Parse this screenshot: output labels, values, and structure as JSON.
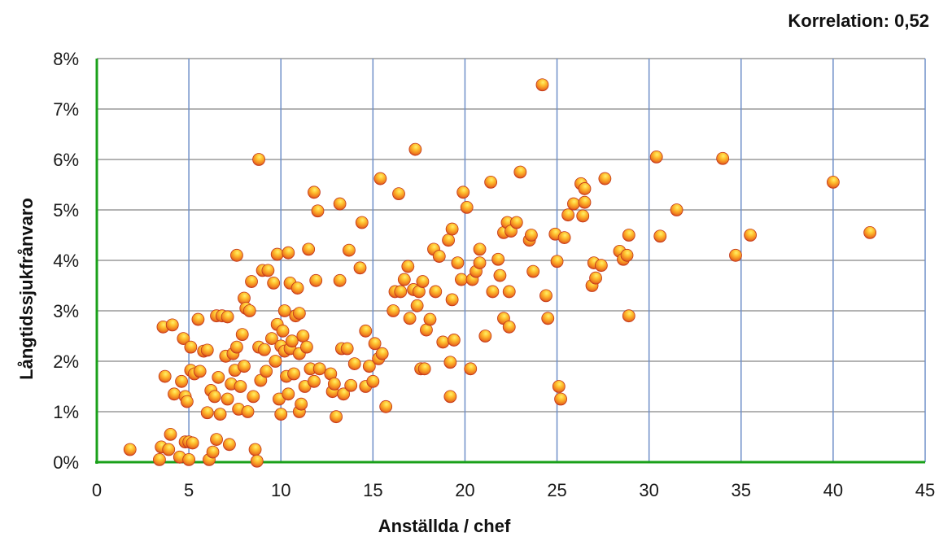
{
  "chart_data": {
    "type": "scatter",
    "annotation": "Korrelation: 0,52",
    "xlabel": "Anställda / chef",
    "ylabel": "Långtidssjukfrånvaro",
    "xlim": [
      0,
      45
    ],
    "ylim": [
      0,
      8
    ],
    "x_ticks": [
      "0",
      "5",
      "10",
      "15",
      "20",
      "25",
      "30",
      "35",
      "40",
      "45"
    ],
    "y_ticks": [
      "0%",
      "1%",
      "2%",
      "3%",
      "4%",
      "5%",
      "6%",
      "7%",
      "8%"
    ],
    "grid": true,
    "legend": "none",
    "colors": {
      "point": "#e8851e",
      "point_highlight": "#ffd23a",
      "point_edge": "#c2361a",
      "axis": "#1aa01a",
      "grid_vertical": "#6f8fc8",
      "grid_horizontal": "#9a9a9a"
    },
    "points": [
      [
        1.8,
        0.25
      ],
      [
        3.4,
        0.05
      ],
      [
        3.5,
        0.3
      ],
      [
        3.6,
        2.68
      ],
      [
        3.7,
        1.7
      ],
      [
        3.9,
        0.25
      ],
      [
        4.0,
        0.55
      ],
      [
        4.1,
        2.72
      ],
      [
        4.2,
        1.35
      ],
      [
        4.5,
        0.1
      ],
      [
        4.6,
        1.6
      ],
      [
        4.7,
        2.45
      ],
      [
        4.8,
        1.3
      ],
      [
        4.8,
        0.4
      ],
      [
        4.9,
        1.2
      ],
      [
        5.0,
        0.4
      ],
      [
        5.0,
        0.05
      ],
      [
        5.1,
        2.28
      ],
      [
        5.1,
        1.82
      ],
      [
        5.2,
        0.38
      ],
      [
        5.3,
        1.75
      ],
      [
        5.5,
        2.83
      ],
      [
        5.6,
        1.8
      ],
      [
        5.8,
        2.2
      ],
      [
        6.0,
        2.22
      ],
      [
        6.0,
        0.98
      ],
      [
        6.1,
        0.05
      ],
      [
        6.2,
        1.42
      ],
      [
        6.3,
        0.2
      ],
      [
        6.4,
        1.3
      ],
      [
        6.5,
        0.45
      ],
      [
        6.5,
        2.9
      ],
      [
        6.6,
        1.68
      ],
      [
        6.7,
        0.95
      ],
      [
        6.8,
        2.9
      ],
      [
        7.0,
        2.1
      ],
      [
        7.1,
        2.88
      ],
      [
        7.1,
        1.25
      ],
      [
        7.2,
        0.35
      ],
      [
        7.3,
        1.55
      ],
      [
        7.4,
        2.15
      ],
      [
        7.5,
        1.82
      ],
      [
        7.6,
        4.1
      ],
      [
        7.6,
        2.28
      ],
      [
        7.7,
        1.05
      ],
      [
        7.8,
        1.5
      ],
      [
        7.9,
        2.53
      ],
      [
        8.0,
        3.25
      ],
      [
        8.0,
        1.9
      ],
      [
        8.1,
        3.05
      ],
      [
        8.2,
        1.0
      ],
      [
        8.3,
        3.0
      ],
      [
        8.4,
        3.58
      ],
      [
        8.5,
        1.3
      ],
      [
        8.6,
        0.25
      ],
      [
        8.7,
        0.02
      ],
      [
        8.8,
        2.28
      ],
      [
        8.8,
        6.0
      ],
      [
        8.9,
        1.62
      ],
      [
        9.0,
        3.8
      ],
      [
        9.1,
        2.23
      ],
      [
        9.2,
        1.8
      ],
      [
        9.3,
        3.8
      ],
      [
        9.5,
        2.45
      ],
      [
        9.6,
        3.55
      ],
      [
        9.7,
        2.0
      ],
      [
        9.8,
        4.12
      ],
      [
        9.8,
        2.73
      ],
      [
        9.9,
        1.25
      ],
      [
        10.0,
        2.3
      ],
      [
        10.0,
        0.95
      ],
      [
        10.1,
        2.6
      ],
      [
        10.2,
        2.2
      ],
      [
        10.2,
        3.0
      ],
      [
        10.3,
        1.7
      ],
      [
        10.4,
        1.35
      ],
      [
        10.4,
        4.15
      ],
      [
        10.5,
        2.25
      ],
      [
        10.5,
        3.55
      ],
      [
        10.6,
        2.4
      ],
      [
        10.7,
        1.75
      ],
      [
        10.8,
        2.9
      ],
      [
        10.9,
        3.45
      ],
      [
        11.0,
        2.15
      ],
      [
        11.0,
        1.0
      ],
      [
        11.0,
        2.95
      ],
      [
        11.1,
        1.15
      ],
      [
        11.2,
        2.5
      ],
      [
        11.3,
        1.5
      ],
      [
        11.4,
        2.28
      ],
      [
        11.5,
        4.22
      ],
      [
        11.6,
        1.85
      ],
      [
        11.8,
        5.35
      ],
      [
        11.8,
        1.6
      ],
      [
        11.9,
        3.6
      ],
      [
        12.0,
        4.98
      ],
      [
        12.1,
        1.85
      ],
      [
        12.7,
        1.75
      ],
      [
        12.8,
        1.4
      ],
      [
        12.9,
        1.55
      ],
      [
        13.0,
        0.9
      ],
      [
        13.2,
        3.6
      ],
      [
        13.2,
        5.12
      ],
      [
        13.3,
        2.25
      ],
      [
        13.4,
        1.35
      ],
      [
        13.6,
        2.25
      ],
      [
        13.7,
        4.2
      ],
      [
        13.8,
        1.52
      ],
      [
        14.0,
        1.95
      ],
      [
        14.3,
        3.85
      ],
      [
        14.4,
        4.75
      ],
      [
        14.6,
        2.6
      ],
      [
        14.6,
        1.5
      ],
      [
        14.8,
        1.9
      ],
      [
        15.0,
        1.6
      ],
      [
        15.1,
        2.35
      ],
      [
        15.3,
        2.05
      ],
      [
        15.4,
        5.62
      ],
      [
        15.5,
        2.15
      ],
      [
        15.7,
        1.1
      ],
      [
        16.1,
        3.0
      ],
      [
        16.2,
        3.38
      ],
      [
        16.4,
        5.32
      ],
      [
        16.5,
        3.38
      ],
      [
        16.7,
        3.62
      ],
      [
        16.9,
        3.88
      ],
      [
        17.0,
        2.85
      ],
      [
        17.2,
        3.42
      ],
      [
        17.3,
        6.2
      ],
      [
        17.4,
        3.1
      ],
      [
        17.5,
        3.38
      ],
      [
        17.6,
        1.85
      ],
      [
        17.7,
        3.58
      ],
      [
        17.8,
        1.85
      ],
      [
        17.9,
        2.62
      ],
      [
        18.1,
        2.83
      ],
      [
        18.3,
        4.22
      ],
      [
        18.4,
        3.38
      ],
      [
        18.6,
        4.08
      ],
      [
        18.8,
        2.38
      ],
      [
        19.1,
        4.4
      ],
      [
        19.2,
        1.3
      ],
      [
        19.2,
        1.98
      ],
      [
        19.3,
        3.22
      ],
      [
        19.3,
        4.62
      ],
      [
        19.4,
        2.42
      ],
      [
        19.6,
        3.95
      ],
      [
        19.8,
        3.62
      ],
      [
        19.9,
        5.35
      ],
      [
        20.1,
        5.05
      ],
      [
        20.3,
        1.85
      ],
      [
        20.4,
        3.62
      ],
      [
        20.6,
        3.78
      ],
      [
        20.8,
        4.22
      ],
      [
        20.8,
        3.95
      ],
      [
        21.1,
        2.5
      ],
      [
        21.4,
        5.55
      ],
      [
        21.5,
        3.38
      ],
      [
        21.8,
        4.02
      ],
      [
        21.9,
        3.7
      ],
      [
        22.1,
        4.55
      ],
      [
        22.1,
        2.85
      ],
      [
        22.3,
        4.75
      ],
      [
        22.4,
        3.38
      ],
      [
        22.4,
        2.68
      ],
      [
        22.5,
        4.58
      ],
      [
        22.8,
        4.75
      ],
      [
        23.0,
        5.75
      ],
      [
        23.5,
        4.4
      ],
      [
        23.6,
        4.5
      ],
      [
        23.7,
        3.78
      ],
      [
        24.2,
        7.48
      ],
      [
        24.4,
        3.3
      ],
      [
        24.5,
        2.85
      ],
      [
        24.9,
        4.52
      ],
      [
        25.0,
        3.98
      ],
      [
        25.1,
        1.5
      ],
      [
        25.2,
        1.25
      ],
      [
        25.4,
        4.45
      ],
      [
        25.6,
        4.9
      ],
      [
        25.9,
        5.12
      ],
      [
        26.3,
        5.52
      ],
      [
        26.4,
        4.88
      ],
      [
        26.5,
        5.42
      ],
      [
        26.5,
        5.15
      ],
      [
        26.9,
        3.5
      ],
      [
        27.0,
        3.95
      ],
      [
        27.1,
        3.65
      ],
      [
        27.4,
        3.9
      ],
      [
        27.6,
        5.62
      ],
      [
        28.4,
        4.18
      ],
      [
        28.6,
        4.02
      ],
      [
        28.8,
        4.1
      ],
      [
        28.9,
        2.9
      ],
      [
        28.9,
        4.5
      ],
      [
        30.4,
        6.05
      ],
      [
        30.6,
        4.48
      ],
      [
        31.5,
        5.0
      ],
      [
        34.0,
        6.02
      ],
      [
        34.7,
        4.1
      ],
      [
        35.5,
        4.5
      ],
      [
        40.0,
        5.55
      ],
      [
        42.0,
        4.55
      ]
    ]
  }
}
